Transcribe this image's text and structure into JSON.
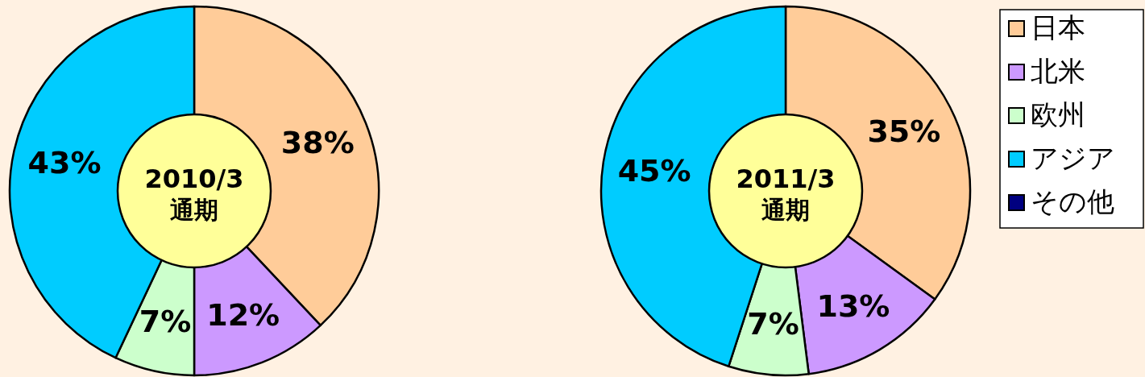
{
  "chart_data": [
    {
      "type": "donut",
      "title": "2010/3",
      "subtitle": "通期",
      "categories": [
        null,
        null,
        null,
        null
      ],
      "values": [
        38,
        12,
        7,
        43
      ],
      "colors": [
        "#ffcc99",
        "#cc99ff",
        "#ccffcc",
        "#00ccff"
      ],
      "value_labels": [
        "38%",
        "12%",
        "7%",
        "43%"
      ]
    },
    {
      "type": "donut",
      "title": "2011/3",
      "subtitle": "通期",
      "categories": [
        "日本",
        "北米",
        "欧州",
        "アジア",
        "その他"
      ],
      "values": [
        35,
        13,
        7,
        45,
        0
      ],
      "colors": [
        "#ffcc99",
        "#cc99ff",
        "#ccffcc",
        "#00ccff",
        "#000080"
      ],
      "value_labels": [
        "35%",
        "13%",
        "7%",
        "45%",
        null
      ],
      "legend": "top right"
    }
  ]
}
